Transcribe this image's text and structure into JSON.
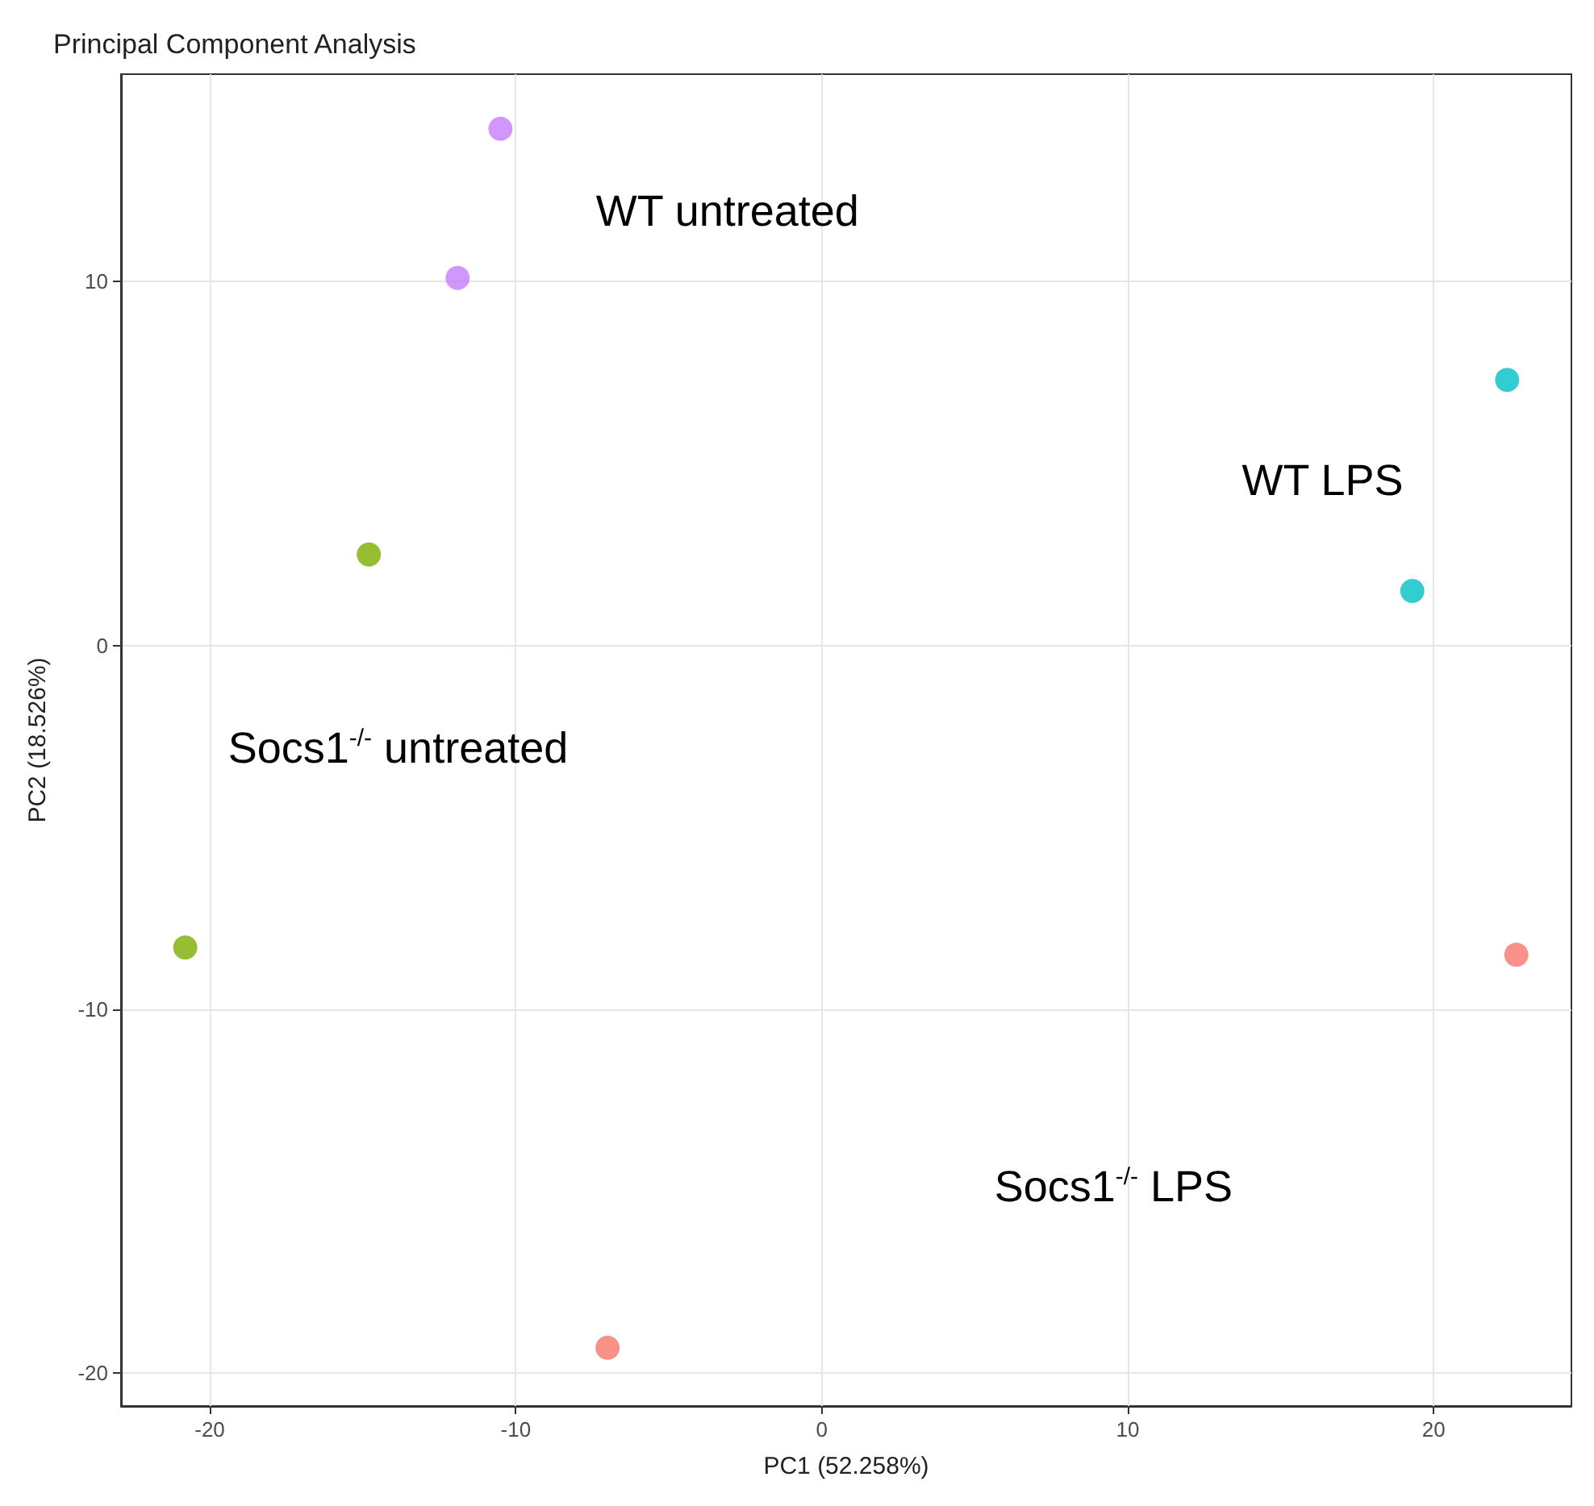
{
  "chart_data": {
    "type": "scatter",
    "title": "Principal Component Analysis",
    "xlabel": "PC1 (52.258%)",
    "ylabel": "PC2 (18.526%)",
    "series": [
      {
        "color": "#c77cff",
        "x": [
          -10.5,
          -11.9
        ],
        "values": [
          14.2,
          10.1
        ]
      },
      {
        "color": "#7cae00",
        "x": [
          -14.8,
          -20.8
        ],
        "values": [
          2.5,
          -8.3
        ]
      },
      {
        "color": "#00bfc4",
        "x": [
          22.4,
          19.3
        ],
        "values": [
          7.3,
          1.5
        ]
      },
      {
        "color": "#f8766d",
        "x": [
          22.7,
          -7.0
        ],
        "values": [
          -8.5,
          -19.3
        ]
      }
    ],
    "xlim": [
      -22.9,
      24.5
    ],
    "ylim": [
      -20.9,
      15.7
    ],
    "xticks": [
      -20,
      -10,
      0,
      10,
      20
    ],
    "yticks": [
      -20,
      -10,
      0,
      10
    ],
    "grid": true,
    "marker": "circle",
    "annotations": [
      "WT untreated",
      "Socs1$^{-/-}$ untreated",
      "WT LPS",
      "Socs1$^{-/-}$ LPS"
    ]
  }
}
